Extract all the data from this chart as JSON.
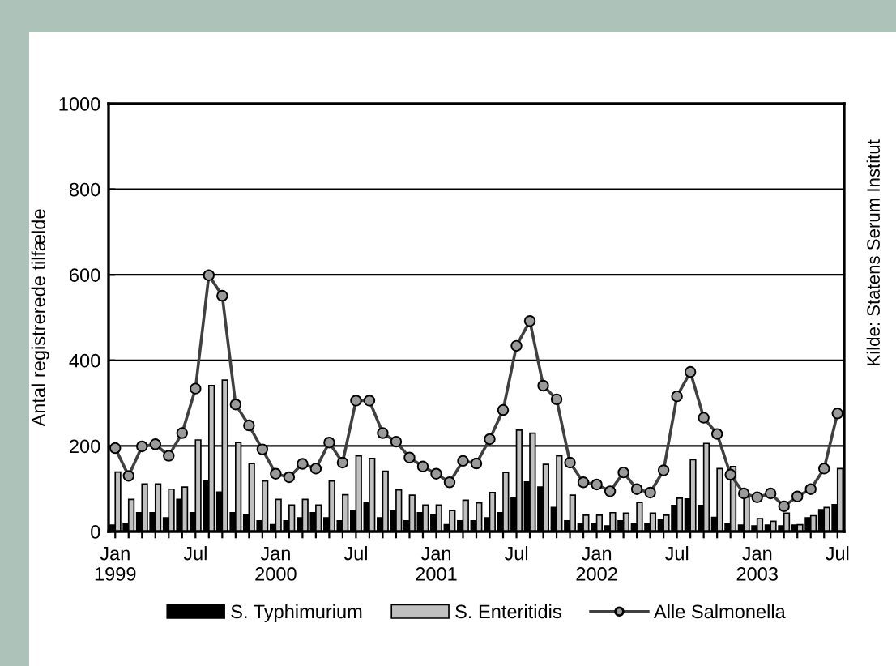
{
  "chart_data": {
    "type": "bar",
    "ylabel": "Antal registrerede tilfælde",
    "categories": [
      "Jan\n1999",
      null,
      null,
      null,
      null,
      null,
      "Jul",
      null,
      null,
      null,
      null,
      null,
      "Jan\n2000",
      null,
      null,
      null,
      null,
      null,
      "Jul",
      null,
      null,
      null,
      null,
      null,
      "Jan\n2001",
      null,
      null,
      null,
      null,
      null,
      "Jul",
      null,
      null,
      null,
      null,
      null,
      "Jan\n2002",
      null,
      null,
      null,
      null,
      null,
      "Jul",
      null,
      null,
      null,
      null,
      null,
      "Jan\n2003",
      null,
      null,
      null,
      null,
      null,
      "Jul"
    ],
    "series": [
      {
        "name": "S. Typhimurium",
        "color": "#000000",
        "values": [
          15,
          19,
          44,
          44,
          32,
          75,
          44,
          118,
          92,
          44,
          38,
          25,
          16,
          25,
          32,
          44,
          32,
          25,
          48,
          67,
          32,
          48,
          25,
          44,
          38,
          16,
          25,
          25,
          32,
          44,
          78,
          116,
          104,
          56,
          25,
          19,
          19,
          13,
          25,
          19,
          19,
          28,
          61,
          76,
          61,
          33,
          18,
          15,
          13,
          15,
          13,
          15,
          32,
          51,
          63
        ]
      },
      {
        "name": "S. Enteritidis",
        "color": "#c0c0c0",
        "values": [
          139,
          75,
          111,
          111,
          99,
          104,
          214,
          341,
          354,
          208,
          159,
          118,
          75,
          62,
          75,
          62,
          118,
          86,
          177,
          171,
          141,
          97,
          85,
          62,
          62,
          49,
          73,
          67,
          91,
          138,
          237,
          230,
          157,
          177,
          85,
          38,
          38,
          44,
          43,
          68,
          43,
          38,
          78,
          168,
          206,
          147,
          152,
          80,
          30,
          24,
          43,
          16,
          37,
          56,
          147
        ]
      },
      {
        "name": "Alle Salmonella",
        "type": "line",
        "color": "#404040",
        "marker": "circle",
        "values": [
          195,
          130,
          199,
          204,
          177,
          230,
          334,
          599,
          551,
          297,
          248,
          192,
          135,
          127,
          158,
          147,
          208,
          161,
          306,
          306,
          230,
          210,
          173,
          152,
          135,
          115,
          165,
          159,
          216,
          284,
          434,
          492,
          341,
          309,
          161,
          115,
          110,
          94,
          138,
          99,
          91,
          143,
          316,
          373,
          266,
          228,
          133,
          89,
          80,
          89,
          59,
          82,
          99,
          147,
          276
        ]
      }
    ],
    "ylim": [
      0,
      1000
    ],
    "yticks": [
      0,
      200,
      400,
      600,
      800,
      1000
    ],
    "grid": "y",
    "legend": "bottom",
    "annotations": [
      "Kilde: Statens Serum Institut"
    ]
  }
}
